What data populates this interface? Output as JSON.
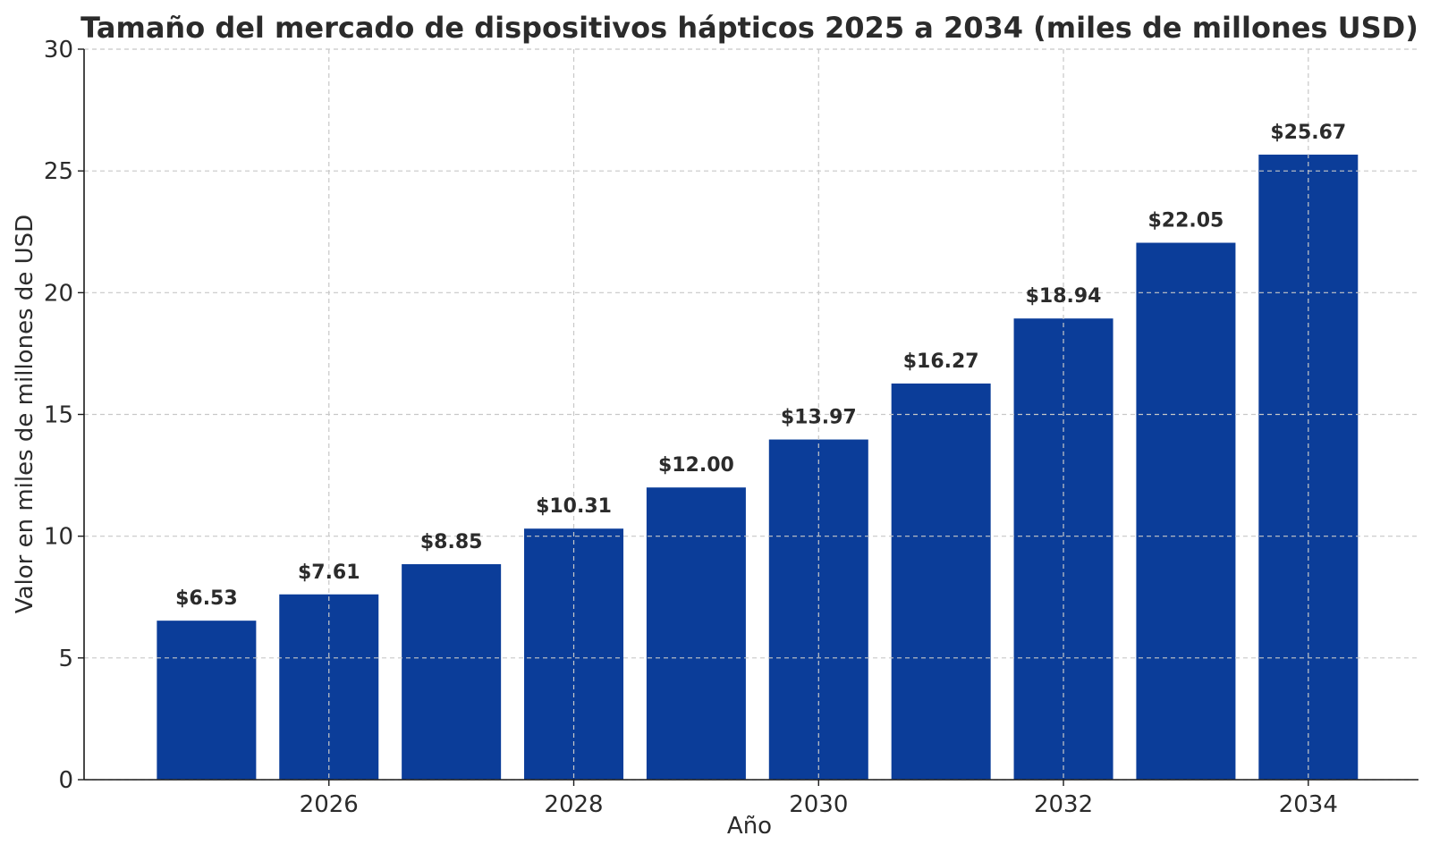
{
  "chart_data": {
    "type": "bar",
    "title": "Tamaño del mercado de dispositivos hápticos 2025 a 2034 (miles de millones USD)",
    "xlabel": "Año",
    "ylabel": "Valor en miles de millones de USD",
    "x": [
      2025,
      2026,
      2027,
      2028,
      2029,
      2030,
      2031,
      2032,
      2033,
      2034
    ],
    "values": [
      6.53,
      7.61,
      8.85,
      10.31,
      12.0,
      13.97,
      16.27,
      18.94,
      22.05,
      25.67
    ],
    "data_labels": [
      "$6.53",
      "$7.61",
      "$8.85",
      "$10.31",
      "$12.00",
      "$13.97",
      "$16.27",
      "$18.94",
      "$22.05",
      "$25.67"
    ],
    "x_ticks": [
      2026,
      2028,
      2030,
      2032,
      2034
    ],
    "x_tick_labels": [
      "2026",
      "2028",
      "2030",
      "2032",
      "2034"
    ],
    "y_ticks": [
      0,
      5,
      10,
      15,
      20,
      25,
      30
    ],
    "y_tick_labels": [
      "0",
      "5",
      "10",
      "15",
      "20",
      "25",
      "30"
    ],
    "ylim": [
      0,
      30
    ],
    "xlim": [
      2024.0,
      2034.9
    ],
    "grid": true,
    "bar_color": "#0b3d99"
  }
}
